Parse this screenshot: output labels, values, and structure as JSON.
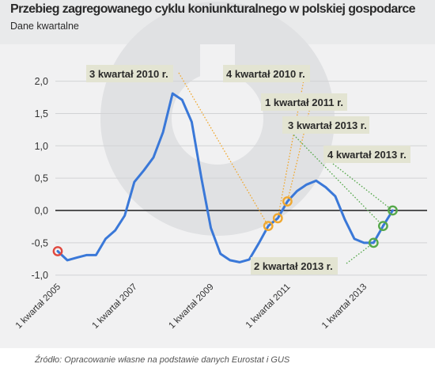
{
  "header": {
    "title": "Przebieg zagregowanego cyklu koniunkturalnego w polskiej gospodarce",
    "subtitle": "Dane kwartalne"
  },
  "footer": {
    "source": "Źródło: Opracowanie własne na podstawie danych Eurostat i GUS"
  },
  "colors": {
    "line": "#3a78d8",
    "start_marker": "#e0483e",
    "orange_marker": "#f0a830",
    "green_marker": "#55a84a",
    "label_bg": "#e3e4d2",
    "watermark": "#e0e1e3"
  },
  "chart_data": {
    "type": "line",
    "title": "Przebieg zagregowanego cyklu koniunkturalnego w polskiej gospodarce",
    "subtitle": "Dane kwartalne",
    "ylim": [
      -1.0,
      2.0
    ],
    "yticks": [
      {
        "value": 2.0,
        "label": "2,0"
      },
      {
        "value": 1.5,
        "label": "1,5"
      },
      {
        "value": 1.0,
        "label": "1,0"
      },
      {
        "value": 0.5,
        "label": "0,5"
      },
      {
        "value": 0.0,
        "label": "0,0"
      },
      {
        "value": -0.5,
        "label": "-0,5"
      },
      {
        "value": -1.0,
        "label": "-1,0"
      }
    ],
    "xticks": [
      {
        "label": "1 kwartał 2005",
        "index": 0
      },
      {
        "label": "1 kwartał 2007",
        "index": 8
      },
      {
        "label": "1 kwartał 2009",
        "index": 16
      },
      {
        "label": "1 kwartał 2011",
        "index": 24
      },
      {
        "label": "1 kwartał 2013",
        "index": 32
      }
    ],
    "x": [
      "1 kw 2005",
      "2 kw 2005",
      "3 kw 2005",
      "4 kw 2005",
      "1 kw 2006",
      "2 kw 2006",
      "3 kw 2006",
      "4 kw 2006",
      "1 kw 2007",
      "2 kw 2007",
      "3 kw 2007",
      "4 kw 2007",
      "1 kw 2008",
      "2 kw 2008",
      "3 kw 2008",
      "4 kw 2008",
      "1 kw 2009",
      "2 kw 2009",
      "3 kw 2009",
      "4 kw 2009",
      "1 kw 2010",
      "2 kw 2010",
      "3 kw 2010",
      "4 kw 2010",
      "1 kw 2011",
      "2 kw 2011",
      "3 kw 2011",
      "4 kw 2011",
      "1 kw 2012",
      "2 kw 2012",
      "3 kw 2012",
      "4 kw 2012",
      "1 kw 2013",
      "2 kw 2013",
      "3 kw 2013",
      "4 kw 2013"
    ],
    "values": [
      -0.63,
      -0.77,
      -0.73,
      -0.69,
      -0.69,
      -0.44,
      -0.31,
      -0.08,
      0.44,
      0.62,
      0.82,
      1.21,
      1.81,
      1.71,
      1.37,
      0.51,
      -0.27,
      -0.67,
      -0.77,
      -0.8,
      -0.76,
      -0.51,
      -0.24,
      -0.12,
      0.14,
      0.3,
      0.4,
      0.46,
      0.36,
      0.22,
      -0.14,
      -0.44,
      -0.5,
      -0.5,
      -0.24,
      0.0
    ],
    "markers": [
      {
        "index": 0,
        "color": "start"
      },
      {
        "index": 22,
        "color": "orange"
      },
      {
        "index": 23,
        "color": "orange"
      },
      {
        "index": 24,
        "color": "orange"
      },
      {
        "index": 33,
        "color": "green"
      },
      {
        "index": 34,
        "color": "green"
      },
      {
        "index": 35,
        "color": "green"
      }
    ],
    "annotations": [
      {
        "text": "3 kwartał 2010 r.",
        "index": 22,
        "style": "orange"
      },
      {
        "text": "4 kwartał 2010 r.",
        "index": 23,
        "style": "orange"
      },
      {
        "text": "1 kwartał 2011 r.",
        "index": 24,
        "style": "orange"
      },
      {
        "text": "3 kwartał 2013 r.",
        "index": 34,
        "style": "green"
      },
      {
        "text": "4 kwartał 2013 r.",
        "index": 35,
        "style": "green"
      },
      {
        "text": "2 kwartał 2013 r.",
        "index": 33,
        "style": "green"
      }
    ],
    "grid": true,
    "legend": "none"
  }
}
